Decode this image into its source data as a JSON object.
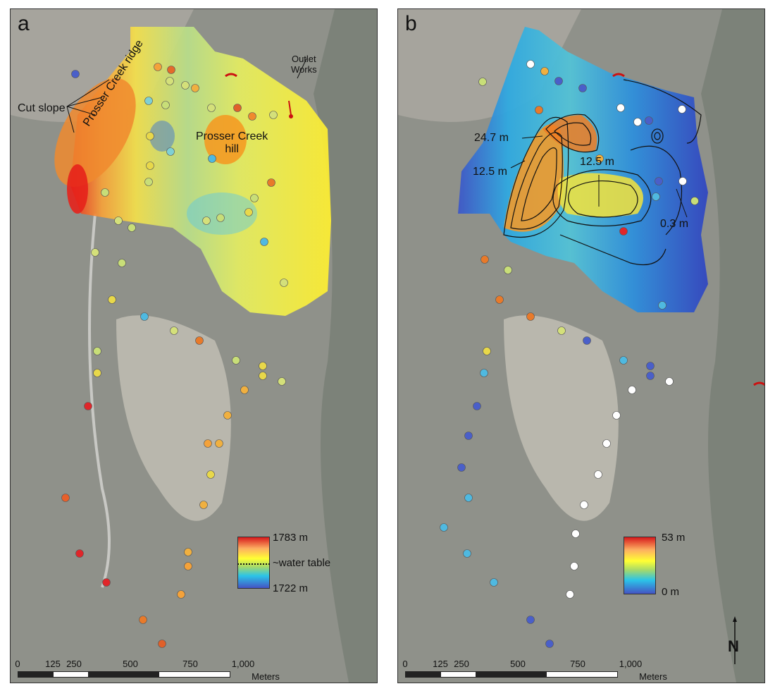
{
  "panel_a": {
    "letter": "a",
    "labels": {
      "ridge": "Prosser Creek ridge",
      "hill_line1": "Prosser Creek",
      "hill_line2": "hill",
      "cut_slope": "Cut slope",
      "outlet_line1": "Outlet",
      "outlet_line2": "Works"
    },
    "legend": {
      "max": "1783 m",
      "mid": "~water table",
      "min": "1722 m"
    }
  },
  "panel_b": {
    "letter": "b",
    "labels": {
      "c1": "24.7 m",
      "c2": "12.5 m",
      "c3": "12.5 m",
      "c4": "0.3 m"
    },
    "legend": {
      "max": "53 m",
      "min": "0 m"
    },
    "north": "N"
  },
  "scale": {
    "ticks": [
      "0",
      "125",
      "250",
      "500",
      "750",
      "1,000"
    ],
    "unit": "Meters"
  },
  "colors": {
    "ramp": [
      "#d7191c",
      "#fdae61",
      "#ffff33",
      "#a6d96a",
      "#2bc4e8",
      "#4453c4"
    ],
    "background_terrain": "#8e9088",
    "outlet_marker": "#cc1111"
  }
}
